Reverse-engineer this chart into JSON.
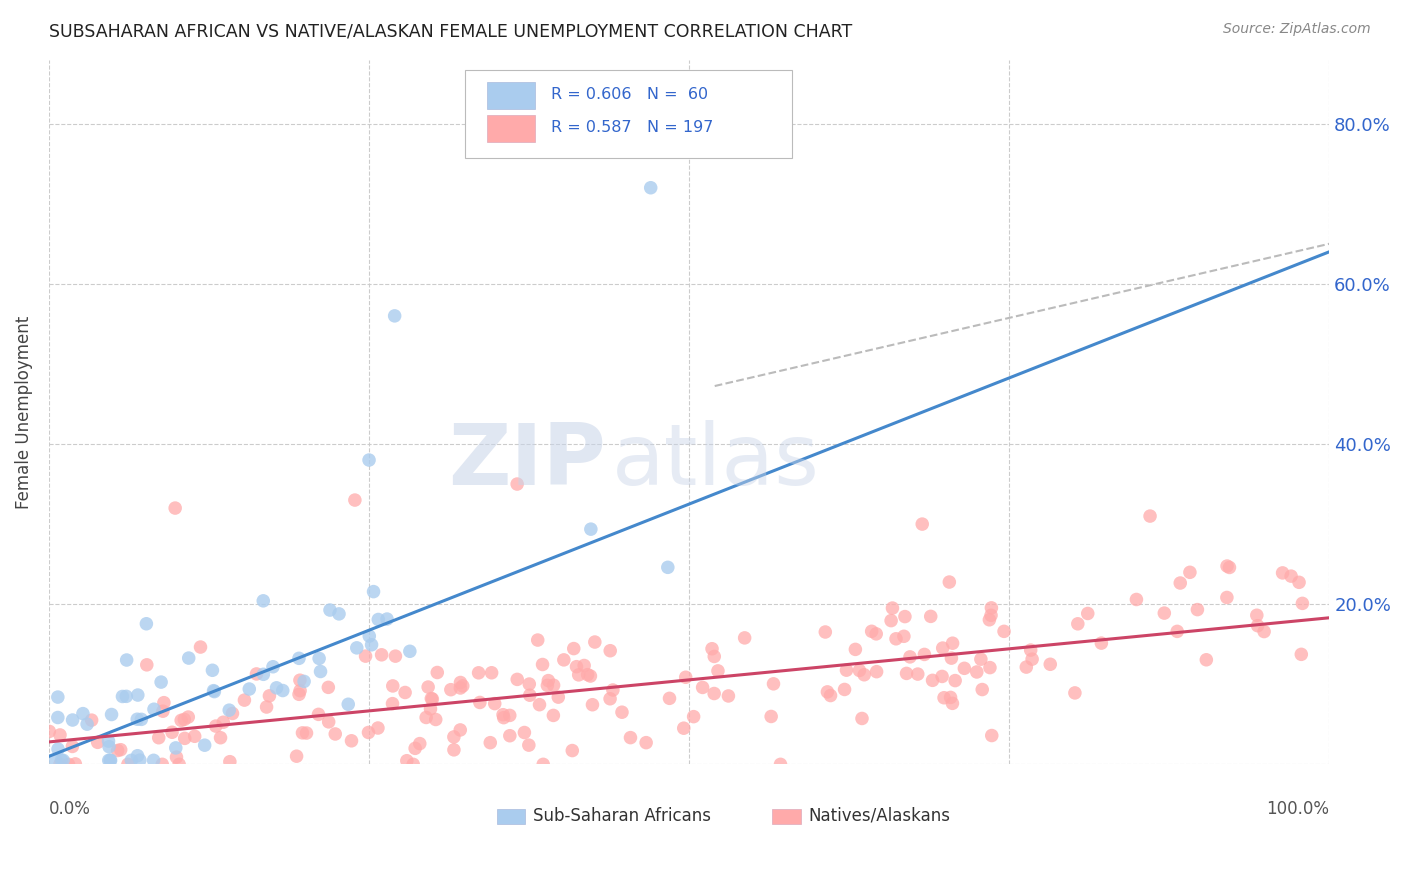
{
  "title": "SUBSAHARAN AFRICAN VS NATIVE/ALASKAN FEMALE UNEMPLOYMENT CORRELATION CHART",
  "source": "Source: ZipAtlas.com",
  "ylabel": "Female Unemployment",
  "legend_text_color": "#3366cc",
  "watermark_zip": "ZIP",
  "watermark_atlas": "atlas",
  "background": "#ffffff",
  "grid_color": "#cccccc",
  "blue_color": "#aaccee",
  "pink_color": "#ffaaaa",
  "blue_line_color": "#4488cc",
  "pink_line_color": "#cc4466",
  "ref_line_color": "#aaaaaa",
  "blue_slope": 0.63,
  "blue_intercept": 0.01,
  "pink_slope": 0.155,
  "pink_intercept": 0.028,
  "blue_n": 60,
  "pink_n": 197,
  "blue_r": "0.606",
  "pink_r": "0.587",
  "ylim_max": 0.88,
  "xlim_max": 1.0,
  "right_yticks": [
    0.2,
    0.4,
    0.6,
    0.8
  ],
  "right_yticklabels": [
    "20.0%",
    "40.0%",
    "60.0%",
    "80.0%"
  ]
}
